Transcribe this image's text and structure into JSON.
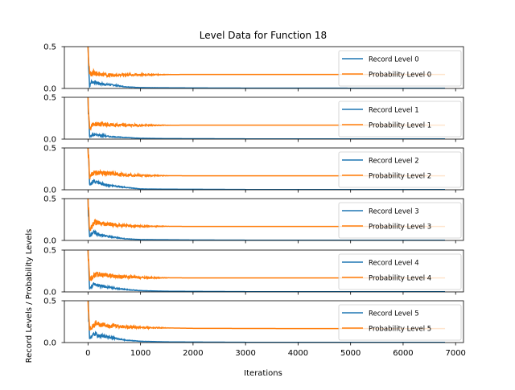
{
  "chart_data": {
    "type": "line",
    "title": "Level Data for Function 18",
    "xlabel": "Iterations",
    "ylabel": "Record Levels / Probability Levels",
    "xlim": [
      -450,
      7150
    ],
    "x_ticks": [
      0,
      1000,
      2000,
      3000,
      4000,
      5000,
      6000,
      7000
    ],
    "ylim": [
      0,
      0.5
    ],
    "y_ticks": [
      0.0,
      0.5
    ],
    "y_tick_labels": [
      "0.0",
      "0.5"
    ],
    "x_range": [
      0,
      6800
    ],
    "legend_position": "upper-right",
    "colors": {
      "record": "#1f77b4",
      "probability": "#ff7f0e"
    },
    "panels": [
      {
        "series": [
          {
            "name": "Record Level 0",
            "shape": [
              [
                0,
                0.5
              ],
              [
                30,
                0.02
              ],
              [
                60,
                0.08
              ],
              [
                150,
                0.07
              ],
              [
                300,
                0.05
              ],
              [
                500,
                0.04
              ],
              [
                700,
                0.02
              ],
              [
                1000,
                0.01
              ],
              [
                1500,
                0.008
              ],
              [
                2000,
                0.006
              ],
              [
                3000,
                0.004
              ],
              [
                5000,
                0.003
              ],
              [
                6800,
                0.002
              ]
            ]
          },
          {
            "name": "Probability Level 0",
            "shape": [
              [
                0,
                0.5
              ],
              [
                30,
                0.16
              ],
              [
                100,
                0.19
              ],
              [
                250,
                0.17
              ],
              [
                400,
                0.16
              ],
              [
                700,
                0.163
              ],
              [
                1000,
                0.165
              ],
              [
                2000,
                0.167
              ],
              [
                4000,
                0.167
              ],
              [
                6800,
                0.167
              ]
            ]
          }
        ]
      },
      {
        "series": [
          {
            "name": "Record Level 1",
            "shape": [
              [
                0,
                0.5
              ],
              [
                30,
                0.03
              ],
              [
                80,
                0.05
              ],
              [
                200,
                0.05
              ],
              [
                400,
                0.03
              ],
              [
                700,
                0.02
              ],
              [
                1000,
                0.01
              ],
              [
                1500,
                0.006
              ],
              [
                2000,
                0.005
              ],
              [
                3000,
                0.003
              ],
              [
                6800,
                0.002
              ]
            ]
          },
          {
            "name": "Probability Level 1",
            "shape": [
              [
                0,
                0.5
              ],
              [
                30,
                0.13
              ],
              [
                100,
                0.18
              ],
              [
                250,
                0.18
              ],
              [
                400,
                0.17
              ],
              [
                700,
                0.165
              ],
              [
                1000,
                0.165
              ],
              [
                2000,
                0.167
              ],
              [
                4000,
                0.167
              ],
              [
                6800,
                0.167
              ]
            ]
          }
        ]
      },
      {
        "series": [
          {
            "name": "Record Level 2",
            "shape": [
              [
                0,
                0.5
              ],
              [
                30,
                0.06
              ],
              [
                100,
                0.1
              ],
              [
                250,
                0.07
              ],
              [
                450,
                0.05
              ],
              [
                700,
                0.03
              ],
              [
                1000,
                0.01
              ],
              [
                1500,
                0.007
              ],
              [
                2000,
                0.006
              ],
              [
                3000,
                0.003
              ],
              [
                6800,
                0.002
              ]
            ]
          },
          {
            "name": "Probability Level 2",
            "shape": [
              [
                0,
                0.5
              ],
              [
                30,
                0.15
              ],
              [
                100,
                0.2
              ],
              [
                250,
                0.2
              ],
              [
                450,
                0.19
              ],
              [
                700,
                0.18
              ],
              [
                1000,
                0.17
              ],
              [
                2000,
                0.167
              ],
              [
                4000,
                0.167
              ],
              [
                6800,
                0.167
              ]
            ]
          }
        ]
      },
      {
        "series": [
          {
            "name": "Record Level 3",
            "shape": [
              [
                0,
                0.5
              ],
              [
                30,
                0.04
              ],
              [
                100,
                0.1
              ],
              [
                250,
                0.06
              ],
              [
                450,
                0.04
              ],
              [
                700,
                0.02
              ],
              [
                1000,
                0.01
              ],
              [
                1500,
                0.008
              ],
              [
                2000,
                0.005
              ],
              [
                3000,
                0.003
              ],
              [
                6800,
                0.002
              ]
            ]
          },
          {
            "name": "Probability Level 3",
            "shape": [
              [
                0,
                0.5
              ],
              [
                30,
                0.12
              ],
              [
                120,
                0.22
              ],
              [
                250,
                0.2
              ],
              [
                450,
                0.19
              ],
              [
                700,
                0.175
              ],
              [
                1000,
                0.17
              ],
              [
                2000,
                0.167
              ],
              [
                4000,
                0.167
              ],
              [
                6800,
                0.167
              ]
            ]
          }
        ]
      },
      {
        "series": [
          {
            "name": "Record Level 4",
            "shape": [
              [
                0,
                0.5
              ],
              [
                30,
                0.04
              ],
              [
                100,
                0.09
              ],
              [
                250,
                0.07
              ],
              [
                450,
                0.05
              ],
              [
                700,
                0.03
              ],
              [
                1000,
                0.015
              ],
              [
                1500,
                0.008
              ],
              [
                2000,
                0.006
              ],
              [
                3000,
                0.003
              ],
              [
                6800,
                0.002
              ]
            ]
          },
          {
            "name": "Probability Level 4",
            "shape": [
              [
                0,
                0.5
              ],
              [
                30,
                0.14
              ],
              [
                150,
                0.22
              ],
              [
                250,
                0.2
              ],
              [
                450,
                0.19
              ],
              [
                700,
                0.18
              ],
              [
                1000,
                0.17
              ],
              [
                2000,
                0.167
              ],
              [
                4000,
                0.167
              ],
              [
                6800,
                0.167
              ]
            ]
          }
        ]
      },
      {
        "series": [
          {
            "name": "Record Level 5",
            "shape": [
              [
                0,
                0.5
              ],
              [
                30,
                0.05
              ],
              [
                120,
                0.1
              ],
              [
                250,
                0.08
              ],
              [
                450,
                0.06
              ],
              [
                700,
                0.03
              ],
              [
                1000,
                0.015
              ],
              [
                1500,
                0.008
              ],
              [
                2000,
                0.006
              ],
              [
                3000,
                0.003
              ],
              [
                6800,
                0.002
              ]
            ]
          },
          {
            "name": "Probability Level 5",
            "shape": [
              [
                0,
                0.5
              ],
              [
                30,
                0.16
              ],
              [
                150,
                0.23
              ],
              [
                300,
                0.21
              ],
              [
                500,
                0.2
              ],
              [
                700,
                0.19
              ],
              [
                1000,
                0.18
              ],
              [
                2000,
                0.17
              ],
              [
                4000,
                0.167
              ],
              [
                6800,
                0.167
              ]
            ]
          }
        ]
      }
    ]
  }
}
